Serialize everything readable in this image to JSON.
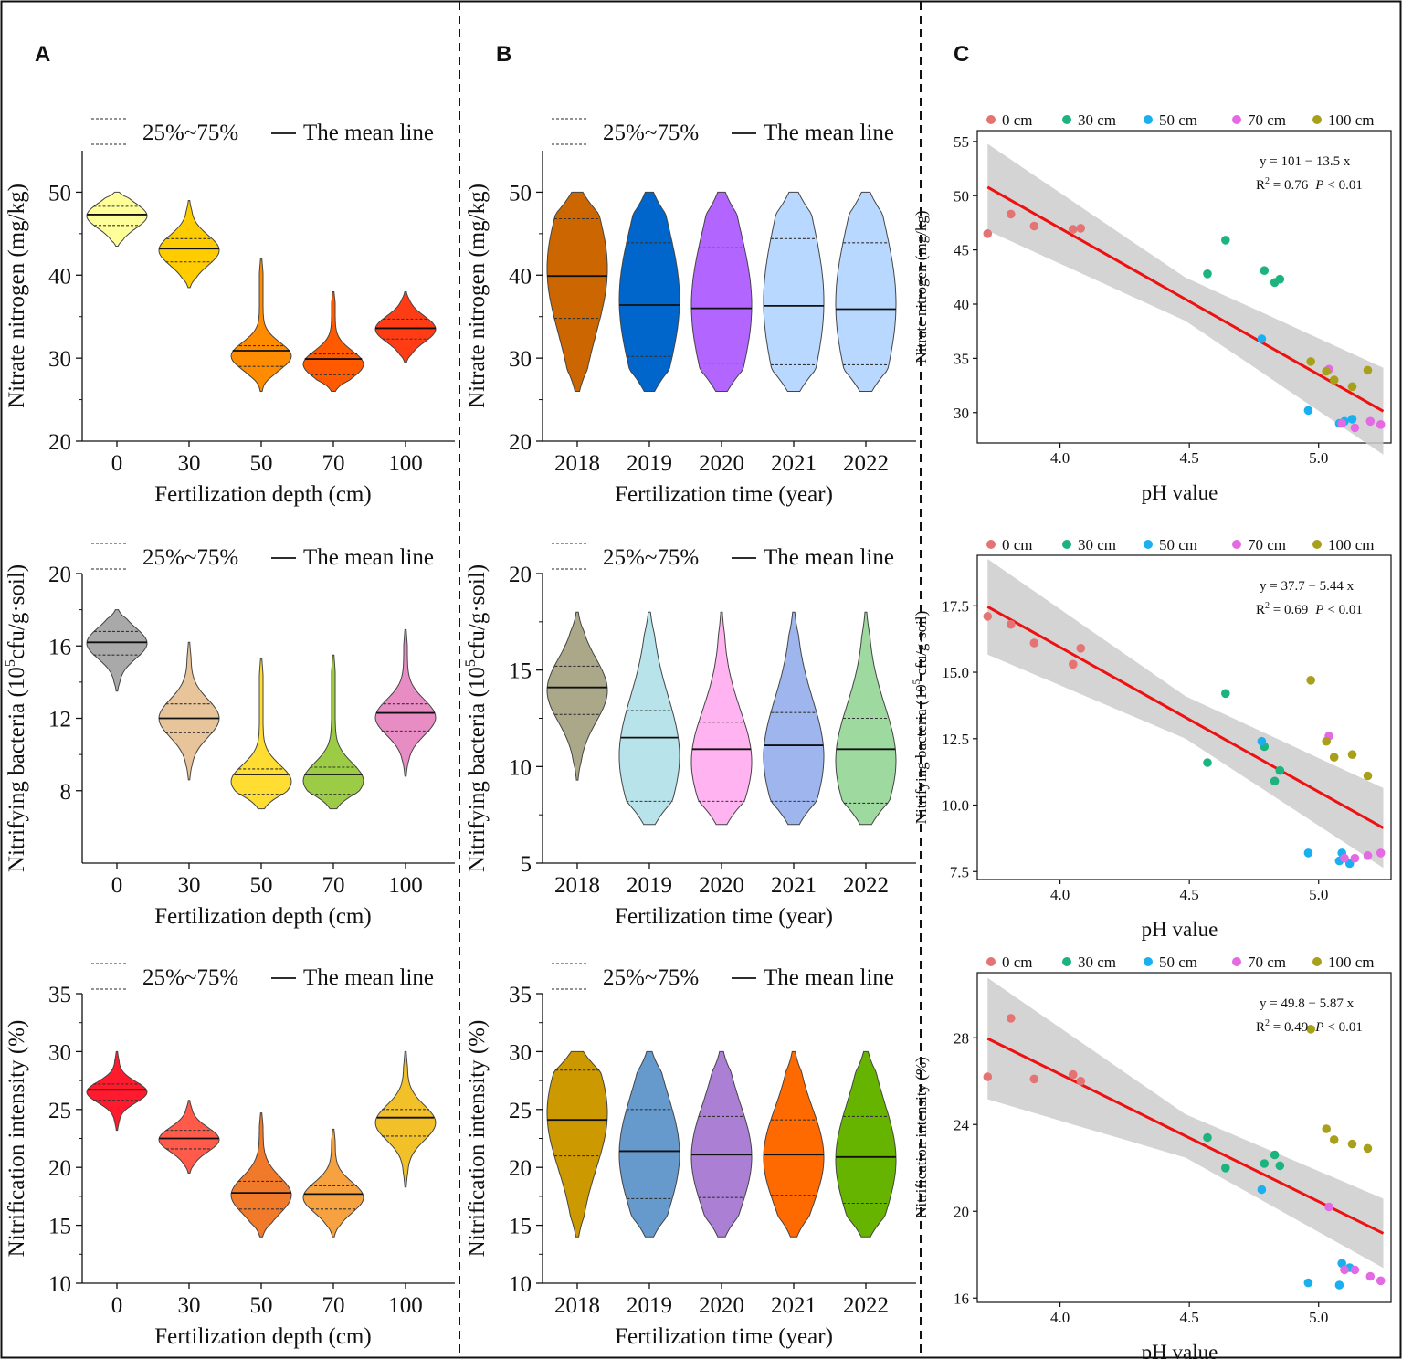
{
  "panel_labels": [
    "A",
    "B",
    "C"
  ],
  "chart_data": [
    {
      "panel": "A",
      "type": "violin",
      "ylabel": "Nitrate nitrogen (mg/kg)",
      "xlabel": "Fertilization depth (cm)",
      "legend": {
        "quartile_label": "25%~75%",
        "mean_label": "The mean line"
      },
      "ylim": [
        20,
        55
      ],
      "yticks": [
        20,
        30,
        40,
        50
      ],
      "categories": [
        "0",
        "30",
        "50",
        "70",
        "100"
      ],
      "series": [
        {
          "name": "0",
          "color": "#ffff99",
          "min": 43.5,
          "max": 50,
          "q1": 46,
          "q3": 48.3,
          "mean": 47.3
        },
        {
          "name": "30",
          "color": "#ffcc00",
          "min": 38.5,
          "max": 49,
          "q1": 41.6,
          "q3": 44.4,
          "mean": 43.2
        },
        {
          "name": "50",
          "color": "#ff8c00",
          "min": 26,
          "max": 42,
          "q1": 29,
          "q3": 31.5,
          "mean": 30.9
        },
        {
          "name": "70",
          "color": "#ff5a00",
          "min": 26,
          "max": 38,
          "q1": 28,
          "q3": 30.5,
          "mean": 29.9
        },
        {
          "name": "100",
          "color": "#ff3c14",
          "min": 29.5,
          "max": 38,
          "q1": 32.3,
          "q3": 34.7,
          "mean": 33.6
        }
      ]
    },
    {
      "panel": "B",
      "type": "violin",
      "ylabel": "Nitrate nitrogen (mg/kg)",
      "xlabel": "Fertilization time (year)",
      "legend": {
        "quartile_label": "25%~75%",
        "mean_label": "The mean line"
      },
      "ylim": [
        20,
        55
      ],
      "yticks": [
        20,
        30,
        40,
        50
      ],
      "categories": [
        "2018",
        "2019",
        "2020",
        "2021",
        "2022"
      ],
      "series": [
        {
          "name": "2018",
          "color": "#cc6600",
          "min": 26,
          "max": 50,
          "q1": 34.8,
          "q3": 46.8,
          "mean": 39.9
        },
        {
          "name": "2019",
          "color": "#0066cc",
          "min": 26,
          "max": 50,
          "q1": 30.2,
          "q3": 43.9,
          "mean": 36.4
        },
        {
          "name": "2020",
          "color": "#b266ff",
          "min": 26,
          "max": 50,
          "q1": 29.4,
          "q3": 43.3,
          "mean": 36.0
        },
        {
          "name": "2021",
          "color": "#b8d8ff",
          "min": 26,
          "max": 50,
          "q1": 29.2,
          "q3": 44.4,
          "mean": 36.3
        },
        {
          "name": "2022",
          "color": "#b8d8ff",
          "min": 26,
          "max": 50,
          "q1": 29.2,
          "q3": 43.9,
          "mean": 35.9
        }
      ]
    },
    {
      "panel": "C",
      "type": "scatter",
      "xlabel": "pH value",
      "ylabel": "Nitrate nitrogen (mg/kg)",
      "equation": "y = 101 − 13.5 x",
      "r2_label": "R",
      "r2_value": " = 0.76",
      "p_text": "< 0.01",
      "xlim": [
        3.68,
        5.28
      ],
      "ylim": [
        27.2,
        56
      ],
      "xticks": [
        4.0,
        4.5,
        5.0
      ],
      "yticks": [
        30,
        35,
        40,
        45,
        50,
        55
      ],
      "fit": {
        "intercept": 101,
        "slope": -13.5,
        "band": [
          4.0,
          2.0,
          4.0
        ]
      },
      "groups": [
        {
          "name": "0 cm",
          "color": "#e57373",
          "points": [
            [
              3.72,
              46.5
            ],
            [
              3.81,
              48.3
            ],
            [
              3.9,
              47.2
            ],
            [
              4.05,
              46.9
            ],
            [
              4.08,
              47.0
            ]
          ]
        },
        {
          "name": "30 cm",
          "color": "#1db37e",
          "points": [
            [
              4.57,
              42.8
            ],
            [
              4.64,
              45.9
            ],
            [
              4.79,
              43.1
            ],
            [
              4.83,
              42.0
            ],
            [
              4.85,
              42.3
            ]
          ]
        },
        {
          "name": "50 cm",
          "color": "#1ab0f0",
          "points": [
            [
              4.78,
              36.8
            ],
            [
              4.96,
              30.2
            ],
            [
              5.08,
              29.0
            ],
            [
              5.1,
              29.2
            ],
            [
              5.13,
              29.4
            ]
          ]
        },
        {
          "name": "70 cm",
          "color": "#e36ae3",
          "points": [
            [
              5.04,
              34.0
            ],
            [
              5.09,
              29.0
            ],
            [
              5.14,
              28.6
            ],
            [
              5.2,
              29.2
            ],
            [
              5.24,
              28.9
            ]
          ]
        },
        {
          "name": "100 cm",
          "color": "#a8a01a",
          "points": [
            [
              4.97,
              34.7
            ],
            [
              5.03,
              33.8
            ],
            [
              5.06,
              33.0
            ],
            [
              5.13,
              32.4
            ],
            [
              5.19,
              33.9
            ]
          ]
        }
      ]
    },
    {
      "panel": "A",
      "type": "violin",
      "ylabel": "Nitrifying bacteria (10",
      "ylabel_sup": "5",
      "ylabel_tail": "cfu/g·soil)",
      "xlabel": "Fertilization depth (cm)",
      "legend": {
        "quartile_label": "25%~75%",
        "mean_label": "The mean line"
      },
      "ylim": [
        4,
        20
      ],
      "yticks": [
        8,
        12,
        16,
        20
      ],
      "categories": [
        "0",
        "30",
        "50",
        "70",
        "100"
      ],
      "series": [
        {
          "name": "0",
          "color": "#a9a9a9",
          "min": 13.5,
          "max": 18,
          "q1": 15.5,
          "q3": 16.8,
          "mean": 16.2
        },
        {
          "name": "30",
          "color": "#e8c49a",
          "min": 8.6,
          "max": 16.2,
          "q1": 11.2,
          "q3": 12.8,
          "mean": 12.0
        },
        {
          "name": "50",
          "color": "#ffdd33",
          "min": 7,
          "max": 15.3,
          "q1": 7.8,
          "q3": 9.2,
          "mean": 8.9
        },
        {
          "name": "70",
          "color": "#9ccc45",
          "min": 7,
          "max": 15.5,
          "q1": 7.8,
          "q3": 9.3,
          "mean": 8.9
        },
        {
          "name": "100",
          "color": "#e88cc4",
          "min": 8.8,
          "max": 16.9,
          "q1": 11.3,
          "q3": 12.8,
          "mean": 12.3
        }
      ]
    },
    {
      "panel": "B",
      "type": "violin",
      "ylabel": "Nitrifying bacteria (10",
      "ylabel_sup": "5",
      "ylabel_tail": "cfu/g·soil)",
      "xlabel": "Fertilization time (year)",
      "legend": {
        "quartile_label": "25%~75%",
        "mean_label": "The mean line"
      },
      "ylim": [
        5,
        20
      ],
      "yticks": [
        5,
        10,
        15,
        20
      ],
      "categories": [
        "2018",
        "2019",
        "2020",
        "2021",
        "2022"
      ],
      "series": [
        {
          "name": "2018",
          "color": "#aaa888",
          "min": 9.3,
          "max": 18,
          "q1": 12.7,
          "q3": 15.2,
          "mean": 14.1
        },
        {
          "name": "2019",
          "color": "#b8e3ea",
          "min": 7,
          "max": 18,
          "q1": 8.2,
          "q3": 12.9,
          "mean": 11.5
        },
        {
          "name": "2020",
          "color": "#ffb3f0",
          "min": 7,
          "max": 18,
          "q1": 8.2,
          "q3": 12.3,
          "mean": 10.9
        },
        {
          "name": "2021",
          "color": "#9eb5ee",
          "min": 7,
          "max": 18,
          "q1": 8.2,
          "q3": 12.8,
          "mean": 11.1
        },
        {
          "name": "2022",
          "color": "#9ed9a0",
          "min": 7,
          "max": 18,
          "q1": 8.1,
          "q3": 12.5,
          "mean": 10.9
        }
      ]
    },
    {
      "panel": "C",
      "type": "scatter",
      "xlabel": "pH value",
      "ylabel": "Nitrifying bacteria (10",
      "ylabel_sup": "5",
      "ylabel_tail": " cfu/g·soil)",
      "equation": "y = 37.7 − 5.44 x",
      "r2_label": "R",
      "r2_value": " = 0.69",
      "p_text": "< 0.01",
      "xlim": [
        3.68,
        5.28
      ],
      "ylim": [
        7.2,
        19.4
      ],
      "xticks": [
        4.0,
        4.5,
        5.0
      ],
      "yticks": [
        7.5,
        10.0,
        12.5,
        15.0,
        17.5
      ],
      "fit": {
        "intercept": 37.7,
        "slope": -5.44,
        "band": [
          1.8,
          0.8,
          1.5
        ]
      },
      "groups": [
        {
          "name": "0 cm",
          "color": "#e57373",
          "points": [
            [
              3.72,
              17.1
            ],
            [
              3.81,
              16.8
            ],
            [
              3.9,
              16.1
            ],
            [
              4.05,
              15.3
            ],
            [
              4.08,
              15.9
            ]
          ]
        },
        {
          "name": "30 cm",
          "color": "#1db37e",
          "points": [
            [
              4.57,
              11.6
            ],
            [
              4.64,
              14.2
            ],
            [
              4.79,
              12.2
            ],
            [
              4.83,
              10.9
            ],
            [
              4.85,
              11.3
            ]
          ]
        },
        {
          "name": "50 cm",
          "color": "#1ab0f0",
          "points": [
            [
              4.78,
              12.4
            ],
            [
              4.96,
              8.2
            ],
            [
              5.08,
              7.9
            ],
            [
              5.09,
              8.2
            ],
            [
              5.12,
              7.8
            ]
          ]
        },
        {
          "name": "70 cm",
          "color": "#e36ae3",
          "points": [
            [
              5.04,
              12.6
            ],
            [
              5.1,
              8.0
            ],
            [
              5.14,
              8.0
            ],
            [
              5.19,
              8.1
            ],
            [
              5.24,
              8.2
            ]
          ]
        },
        {
          "name": "100 cm",
          "color": "#a8a01a",
          "points": [
            [
              4.97,
              14.7
            ],
            [
              5.03,
              12.4
            ],
            [
              5.06,
              11.8
            ],
            [
              5.13,
              11.9
            ],
            [
              5.19,
              11.1
            ]
          ]
        }
      ]
    },
    {
      "panel": "A",
      "type": "violin",
      "ylabel": "Nitrification intensity (%)",
      "xlabel": "Fertilization depth (cm)",
      "legend": {
        "quartile_label": "25%~75%",
        "mean_label": "The mean line"
      },
      "ylim": [
        10,
        35
      ],
      "yticks": [
        10,
        15,
        20,
        25,
        30,
        35
      ],
      "categories": [
        "0",
        "30",
        "50",
        "70",
        "100"
      ],
      "series": [
        {
          "name": "0",
          "color": "#ff1a2e",
          "min": 23.2,
          "max": 30,
          "q1": 25.8,
          "q3": 27.2,
          "mean": 26.7
        },
        {
          "name": "30",
          "color": "#ff5a4a",
          "min": 19.5,
          "max": 25.8,
          "q1": 21.6,
          "q3": 23.2,
          "mean": 22.5
        },
        {
          "name": "50",
          "color": "#f07a2a",
          "min": 14,
          "max": 24.7,
          "q1": 16.4,
          "q3": 18.8,
          "mean": 17.8
        },
        {
          "name": "70",
          "color": "#f7a240",
          "min": 14,
          "max": 23.3,
          "q1": 16.4,
          "q3": 18.4,
          "mean": 17.7
        },
        {
          "name": "100",
          "color": "#f2c12a",
          "min": 18.3,
          "max": 30,
          "q1": 22.7,
          "q3": 25.0,
          "mean": 24.3
        }
      ]
    },
    {
      "panel": "B",
      "type": "violin",
      "ylabel": "Nitrification intensity (%)",
      "xlabel": "Fertilization time (year)",
      "legend": {
        "quartile_label": "25%~75%",
        "mean_label": "The mean line"
      },
      "ylim": [
        10,
        35
      ],
      "yticks": [
        10,
        15,
        20,
        25,
        30,
        35
      ],
      "categories": [
        "2018",
        "2019",
        "2020",
        "2021",
        "2022"
      ],
      "series": [
        {
          "name": "2018",
          "color": "#cc9900",
          "min": 14,
          "max": 30,
          "q1": 21.0,
          "q3": 28.4,
          "mean": 24.1
        },
        {
          "name": "2019",
          "color": "#6699cc",
          "min": 14,
          "max": 30,
          "q1": 17.3,
          "q3": 25.0,
          "mean": 21.4
        },
        {
          "name": "2020",
          "color": "#aa7fd4",
          "min": 14,
          "max": 30,
          "q1": 17.4,
          "q3": 24.4,
          "mean": 21.1
        },
        {
          "name": "2021",
          "color": "#ff6a00",
          "min": 14,
          "max": 30,
          "q1": 17.6,
          "q3": 24.1,
          "mean": 21.1
        },
        {
          "name": "2022",
          "color": "#66b300",
          "min": 14,
          "max": 30,
          "q1": 16.9,
          "q3": 24.4,
          "mean": 20.9
        }
      ]
    },
    {
      "panel": "C",
      "type": "scatter",
      "xlabel": "pH value",
      "ylabel": "Nitrification intensity (%)",
      "equation": "y = 49.8 − 5.87 x",
      "r2_label": "R",
      "r2_value": " = 0.49",
      "p_text": "< 0.01",
      "xlim": [
        3.68,
        5.28
      ],
      "ylim": [
        15.8,
        31.0
      ],
      "xticks": [
        4.0,
        4.5,
        5.0
      ],
      "yticks": [
        16,
        20,
        24,
        28
      ],
      "fit": {
        "intercept": 49.8,
        "slope": -5.87,
        "band": [
          2.8,
          1.0,
          1.6
        ]
      },
      "groups": [
        {
          "name": "0 cm",
          "color": "#e57373",
          "points": [
            [
              3.72,
              26.2
            ],
            [
              3.81,
              28.9
            ],
            [
              3.9,
              26.1
            ],
            [
              4.05,
              26.3
            ],
            [
              4.08,
              26.0
            ]
          ]
        },
        {
          "name": "30 cm",
          "color": "#1db37e",
          "points": [
            [
              4.57,
              23.4
            ],
            [
              4.64,
              22.0
            ],
            [
              4.79,
              22.2
            ],
            [
              4.83,
              22.6
            ],
            [
              4.85,
              22.1
            ]
          ]
        },
        {
          "name": "50 cm",
          "color": "#1ab0f0",
          "points": [
            [
              4.78,
              21.0
            ],
            [
              4.96,
              16.7
            ],
            [
              5.08,
              16.6
            ],
            [
              5.09,
              17.6
            ],
            [
              5.12,
              17.4
            ]
          ]
        },
        {
          "name": "70 cm",
          "color": "#e36ae3",
          "points": [
            [
              5.04,
              20.2
            ],
            [
              5.1,
              17.3
            ],
            [
              5.14,
              17.3
            ],
            [
              5.2,
              17.0
            ],
            [
              5.24,
              16.8
            ]
          ]
        },
        {
          "name": "100 cm",
          "color": "#a8a01a",
          "points": [
            [
              4.97,
              28.4
            ],
            [
              5.03,
              23.8
            ],
            [
              5.06,
              23.3
            ],
            [
              5.13,
              23.1
            ],
            [
              5.19,
              22.9
            ]
          ]
        }
      ]
    }
  ]
}
